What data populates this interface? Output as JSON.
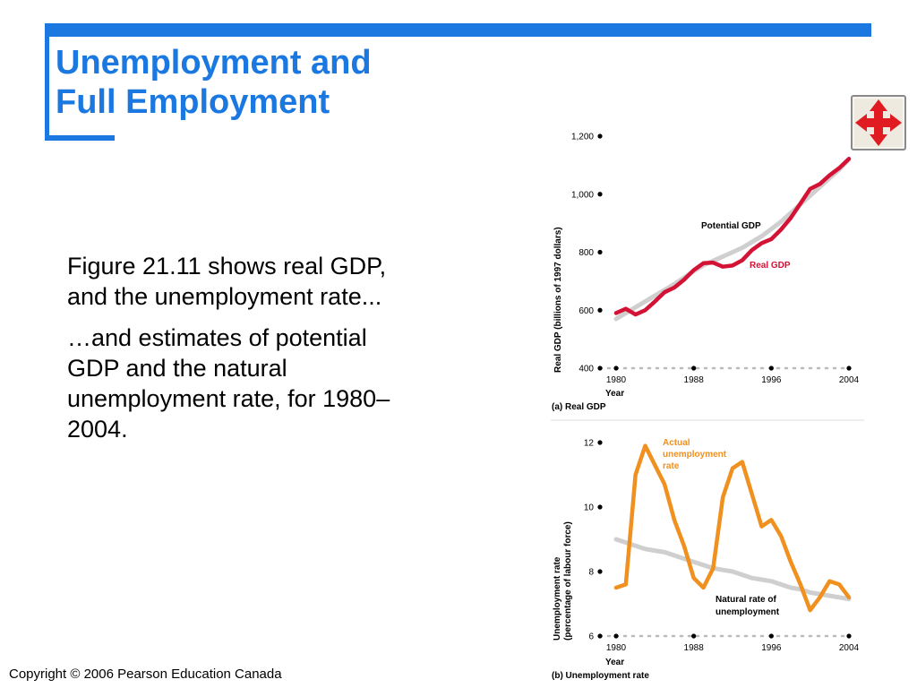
{
  "slide": {
    "title_line1": "Unemployment and",
    "title_line2": "Full Employment",
    "paragraph1": "Figure 21.11 shows real GDP, and the unemployment rate...",
    "paragraph2": "…and estimates of potential GDP and the natural unemployment rate, for 1980–2004.",
    "copyright": "Copyright © 2006 Pearson Education Canada",
    "nav_icon": "four-arrows-move-icon",
    "accent_color": "#1a78e0"
  },
  "chart_data": [
    {
      "type": "line",
      "caption": "(a) Real GDP",
      "ylabel": "Real GDP (billions of 1997 dollars)",
      "xlabel": "Year",
      "xlim": [
        1980,
        2004
      ],
      "ylim": [
        400,
        1200
      ],
      "yticks": [
        400,
        600,
        800,
        1000,
        1200
      ],
      "yticklabels": [
        "400",
        "600",
        "800",
        "1,000",
        "1,200"
      ],
      "xticks": [
        1980,
        1988,
        1996,
        2004
      ],
      "xticklabels": [
        "1980",
        "1988",
        "1996",
        "2004"
      ],
      "x": [
        1980,
        1981,
        1982,
        1983,
        1984,
        1985,
        1986,
        1987,
        1988,
        1989,
        1990,
        1991,
        1992,
        1993,
        1994,
        1995,
        1996,
        1997,
        1998,
        1999,
        2000,
        2001,
        2002,
        2003,
        2004
      ],
      "series": [
        {
          "name": "Potential GDP",
          "color": "#cfcfcf",
          "values": [
            570,
            590,
            610,
            630,
            650,
            670,
            690,
            712,
            735,
            755,
            770,
            785,
            800,
            815,
            835,
            855,
            880,
            905,
            935,
            965,
            995,
            1025,
            1055,
            1085,
            1120
          ]
        },
        {
          "name": "Real GDP",
          "color": "#d41235",
          "values": [
            590,
            605,
            585,
            600,
            630,
            662,
            678,
            705,
            738,
            762,
            764,
            750,
            754,
            772,
            807,
            831,
            845,
            878,
            918,
            968,
            1018,
            1035,
            1065,
            1090,
            1122
          ]
        }
      ],
      "grid": false
    },
    {
      "type": "line",
      "caption": "(b) Unemployment rate",
      "ylabel": "Unemployment rate (percentage of labour force)",
      "xlabel": "Year",
      "xlim": [
        1980,
        2004
      ],
      "ylim": [
        6,
        12
      ],
      "yticks": [
        6,
        8,
        10,
        12
      ],
      "yticklabels": [
        "6",
        "8",
        "10",
        "12"
      ],
      "xticks": [
        1980,
        1988,
        1996,
        2004
      ],
      "xticklabels": [
        "1980",
        "1988",
        "1996",
        "2004"
      ],
      "x": [
        1980,
        1981,
        1982,
        1983,
        1984,
        1985,
        1986,
        1987,
        1988,
        1989,
        1990,
        1991,
        1992,
        1993,
        1994,
        1995,
        1996,
        1997,
        1998,
        1999,
        2000,
        2001,
        2002,
        2003,
        2004
      ],
      "series": [
        {
          "name": "Natural rate of unemployment",
          "color": "#cfcfcf",
          "values": [
            9.0,
            8.9,
            8.8,
            8.7,
            8.65,
            8.6,
            8.5,
            8.4,
            8.3,
            8.2,
            8.1,
            8.05,
            8.0,
            7.9,
            7.8,
            7.75,
            7.7,
            7.6,
            7.5,
            7.45,
            7.35,
            7.3,
            7.25,
            7.2,
            7.15
          ]
        },
        {
          "name": "Actual unemployment rate",
          "color": "#f0901e",
          "values": [
            7.5,
            7.6,
            11.0,
            11.9,
            11.3,
            10.7,
            9.6,
            8.8,
            7.8,
            7.5,
            8.1,
            10.3,
            11.2,
            11.4,
            10.4,
            9.4,
            9.6,
            9.1,
            8.3,
            7.6,
            6.8,
            7.2,
            7.7,
            7.6,
            7.2
          ]
        }
      ],
      "grid": false
    }
  ]
}
